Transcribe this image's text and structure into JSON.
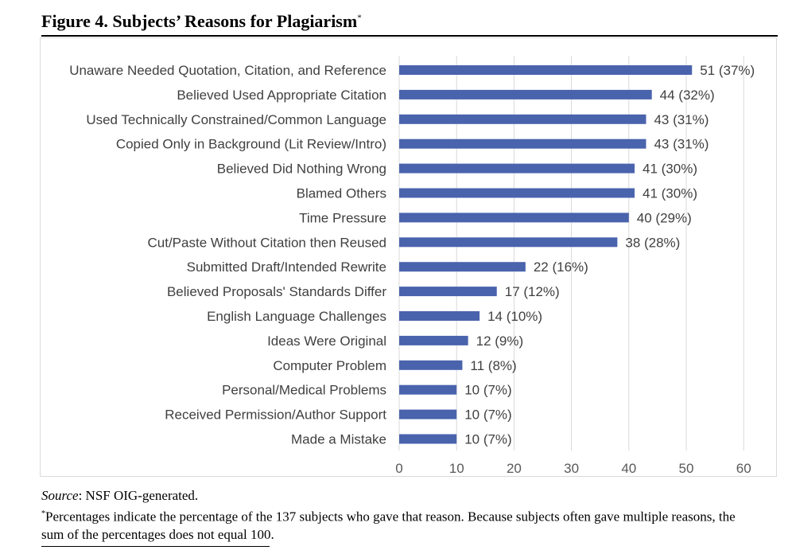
{
  "title": "Figure 4. Subjects’ Reasons for Plagiarism",
  "title_mark": "*",
  "source_label": "Source",
  "source_text": ": NSF OIG-generated.",
  "footnote_mark": "*",
  "footnote_text": "Percentages indicate the percentage of the 137 subjects who gave that reason. Because subjects often gave multiple reasons, the sum of the percentages does not equal 100.",
  "chart_data": {
    "type": "bar",
    "orientation": "horizontal",
    "title": "Figure 4. Subjects’ Reasons for Plagiarism",
    "xlabel": "",
    "ylabel": "",
    "xlim": [
      0,
      60
    ],
    "x_ticks": [
      0,
      10,
      20,
      30,
      40,
      50,
      60
    ],
    "grid": true,
    "legend": "none",
    "bar_color": "#4a63ad",
    "grid_color": "#d9d9d9",
    "categories": [
      "Unaware Needed Quotation, Citation, and Reference",
      "Believed Used Appropriate Citation",
      "Used Technically Constrained/Common Language",
      "Copied Only in Background (Lit Review/Intro)",
      "Believed Did Nothing Wrong",
      "Blamed Others",
      "Time Pressure",
      "Cut/Paste Without Citation then Reused",
      "Submitted Draft/Intended Rewrite",
      "Believed Proposals' Standards Differ",
      "English Language Challenges",
      "Ideas Were Original",
      "Computer Problem",
      "Personal/Medical Problems",
      "Received Permission/Author Support",
      "Made a Mistake"
    ],
    "values": [
      51,
      44,
      43,
      43,
      41,
      41,
      40,
      38,
      22,
      17,
      14,
      12,
      11,
      10,
      10,
      10
    ],
    "data_labels": [
      "51 (37%)",
      "44 (32%)",
      "43 (31%)",
      "43 (31%)",
      "41 (30%)",
      "41 (30%)",
      "40 (29%)",
      "38 (28%)",
      "22 (16%)",
      "17 (12%)",
      "14 (10%)",
      "12 (9%)",
      "11 (8%)",
      "10 (7%)",
      "10 (7%)",
      "10 (7%)"
    ]
  }
}
